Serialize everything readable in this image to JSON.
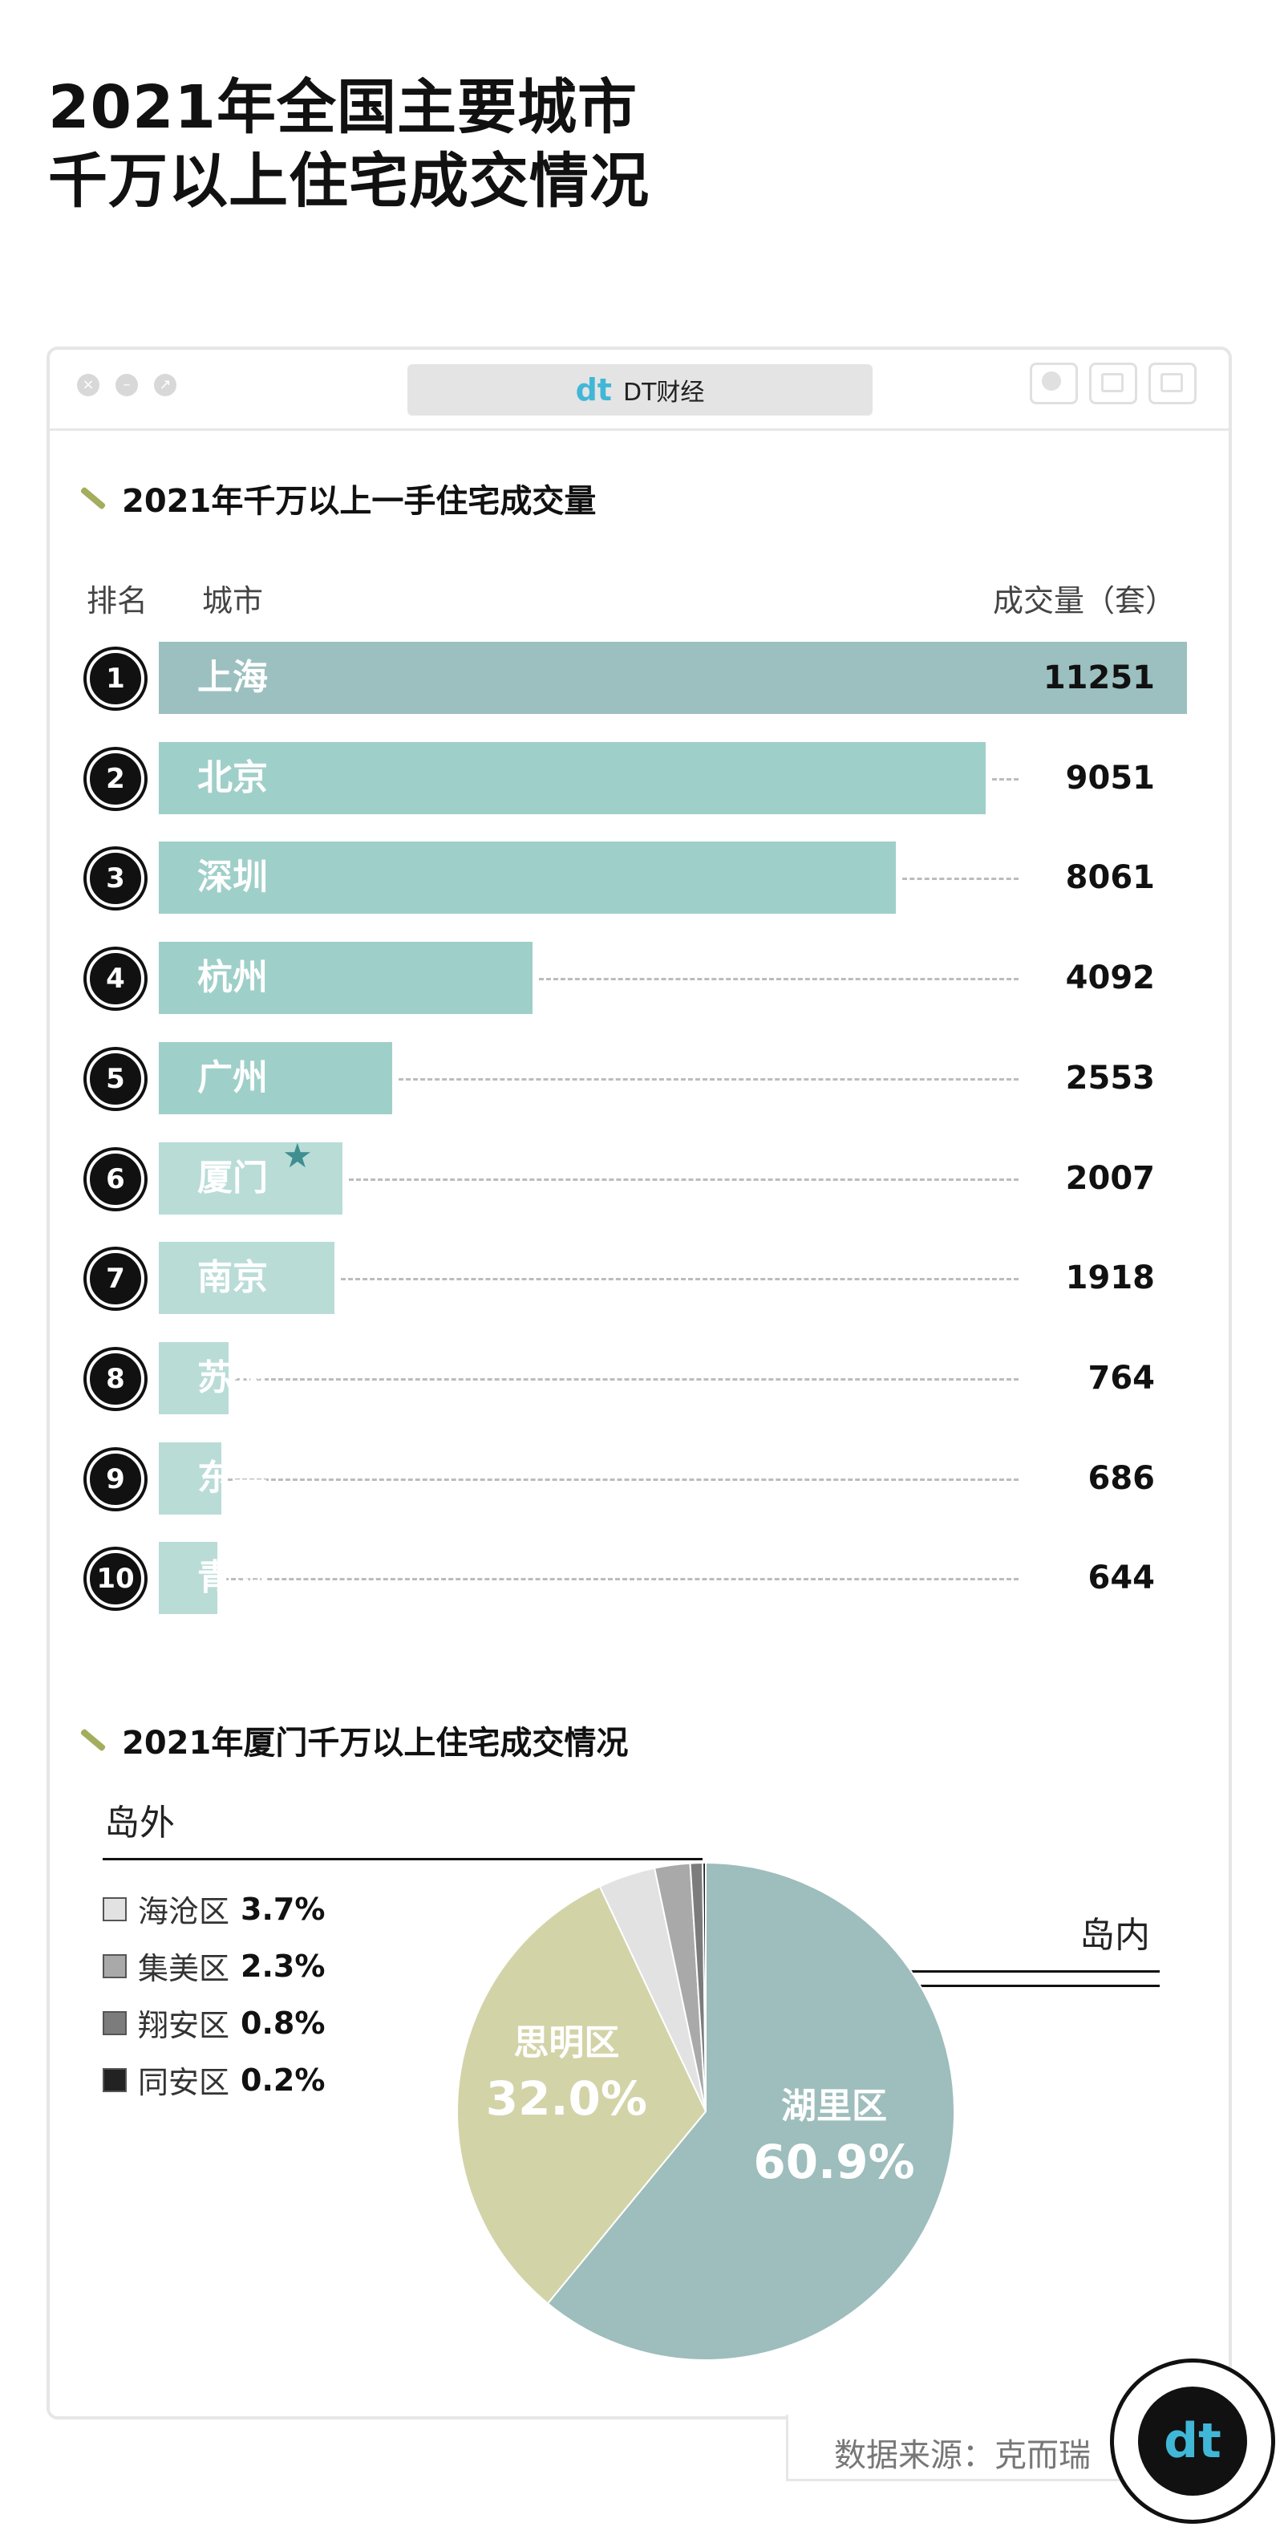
{
  "header": {
    "title_line1": "2021年全国主要城市",
    "title_line2": "千万以上住宅成交情况"
  },
  "window": {
    "brand_logo": "dt",
    "brand_name": "DT财经"
  },
  "bar_section": {
    "title": "2021年千万以上一手住宅成交量",
    "col_rank": "排名",
    "col_city": "城市",
    "col_value": "成交量（套）",
    "highlight_city": "厦门"
  },
  "pie_section": {
    "title": "2021年厦门千万以上住宅成交情况",
    "island_outside": "岛外",
    "island_inside": "岛内"
  },
  "source": "数据来源：克而瑞",
  "badge_logo": "dt",
  "colors": {
    "bar_top": "#9cc0c0",
    "bar_mid": "#9fcfc9",
    "bar_low": "#b9dcd7",
    "pie_huli": "#9ebdbd",
    "pie_siming": "#d3d3a8"
  },
  "chart_data": [
    {
      "type": "bar",
      "categories": [
        "上海",
        "北京",
        "深圳",
        "杭州",
        "广州",
        "厦门",
        "南京",
        "苏州",
        "东莞",
        "青岛"
      ],
      "ranks": [
        "1",
        "2",
        "3",
        "4",
        "5",
        "6",
        "7",
        "8",
        "9",
        "10"
      ],
      "values": [
        11251,
        9051,
        8061,
        4092,
        2553,
        2007,
        1918,
        764,
        686,
        644
      ],
      "title": "2021年千万以上一手住宅成交量",
      "xlabel": "",
      "ylabel": "成交量（套）"
    },
    {
      "type": "pie",
      "title": "2021年厦门千万以上住宅成交情况",
      "slices": [
        {
          "name": "湖里区",
          "value": 60.9,
          "label": "60.9%",
          "color": "#9ebdbd",
          "group": "岛内"
        },
        {
          "name": "思明区",
          "value": 32.0,
          "label": "32.0%",
          "color": "#d3d3a8",
          "group": "岛内"
        },
        {
          "name": "海沧区",
          "value": 3.7,
          "label": "3.7%",
          "color": "#e2e2e2",
          "group": "岛外"
        },
        {
          "name": "集美区",
          "value": 2.3,
          "label": "2.3%",
          "color": "#a9a9a9",
          "group": "岛外"
        },
        {
          "name": "翔安区",
          "value": 0.8,
          "label": "0.8%",
          "color": "#7c7c7c",
          "group": "岛外"
        },
        {
          "name": "同安区",
          "value": 0.2,
          "label": "0.2%",
          "color": "#222222",
          "group": "岛外"
        }
      ]
    }
  ]
}
